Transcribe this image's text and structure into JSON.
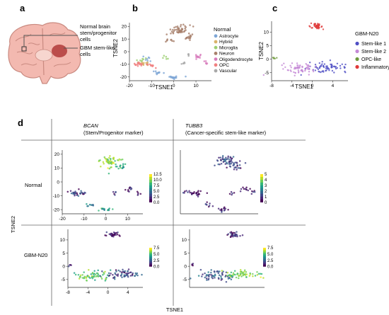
{
  "panels": {
    "a": {
      "letter": "a",
      "callouts": [
        {
          "line1": "Normal brain",
          "line2": "stem/progenitor",
          "line3": "cells"
        },
        {
          "line1": "GBM stem-like",
          "line2": "cells"
        }
      ]
    },
    "b": {
      "letter": "b",
      "xlabel": "TSNE1",
      "ylabel": "TSNE2",
      "legend_title": "Normal",
      "xticks": [
        "-20",
        "-10",
        "0",
        "10"
      ],
      "yticks": [
        "20",
        "10",
        "0",
        "-10",
        "-20"
      ]
    },
    "c": {
      "letter": "c",
      "xlabel": "TSNE1",
      "ylabel": "TSNE2",
      "legend_title": "GBM-N20",
      "xticks": [
        "-8",
        "-4",
        "0",
        "4"
      ],
      "yticks": [
        "10",
        "5",
        "0",
        "-5"
      ]
    },
    "d": {
      "letter": "d",
      "col1_title": "BCAN",
      "col1_sub": "(Stem/Progenitor marker)",
      "col2_title": "TUBB3",
      "col2_sub": "(Cancer-specific stem-like marker)",
      "row1": "Normal",
      "row2": "GBM-N20",
      "ylabel": "TSNE2",
      "xlabel": "TSNE1",
      "xticks_normal": [
        "-20",
        "-10",
        "0",
        "10"
      ],
      "yticks_normal": [
        "20",
        "10",
        "0",
        "-10",
        "-20"
      ],
      "xticks_gbm": [
        "-8",
        "-4",
        "0",
        "4"
      ],
      "yticks_gbm": [
        "10",
        "5",
        "0",
        "-5"
      ],
      "colorbars": {
        "bcan_normal": [
          "12.5",
          "10.0",
          "7.5",
          "5.0",
          "2.5",
          "0.0"
        ],
        "tubb3_normal": [
          "5",
          "4",
          "3",
          "2",
          "1",
          "0"
        ],
        "bcan_gbm": [
          "7.5",
          "5.0",
          "2.5",
          "0.0"
        ],
        "tubb3_gbm": [
          "7.5",
          "5.0",
          "2.5",
          "0.0"
        ]
      }
    }
  },
  "chart_data": [
    {
      "type": "scatter",
      "panel": "b",
      "xlabel": "TSNE1",
      "ylabel": "TSNE2",
      "xlim": [
        -20,
        17
      ],
      "ylim": [
        -23,
        23
      ],
      "legend_title": "Normal",
      "legend_position": "right",
      "series": [
        {
          "name": "Astrocyte",
          "color": "#7ea6d6",
          "clusters": [
            {
              "x": 0,
              "y": -20,
              "rx": 2.5,
              "ry": 1.5,
              "n": 18
            },
            {
              "x": -7,
              "y": -17,
              "rx": 2,
              "ry": 1.5,
              "n": 10
            },
            {
              "x": -12,
              "y": -7,
              "rx": 1.5,
              "ry": 2,
              "n": 8
            }
          ]
        },
        {
          "name": "Hybrid",
          "color": "#d9b36a",
          "clusters": [
            {
              "x": -13,
              "y": -9,
              "rx": 3,
              "ry": 2,
              "n": 14
            }
          ]
        },
        {
          "name": "Microglia",
          "color": "#9ccf73",
          "clusters": [
            {
              "x": -15,
              "y": -7,
              "rx": 2.5,
              "ry": 1.5,
              "n": 8
            },
            {
              "x": -4,
              "y": -5,
              "rx": 1.5,
              "ry": 1,
              "n": 5
            }
          ]
        },
        {
          "name": "Neuron",
          "color": "#a8806b",
          "clusters": [
            {
              "x": 2,
              "y": 17,
              "rx": 5,
              "ry": 4,
              "n": 50
            },
            {
              "x": 7,
              "y": 11,
              "rx": 2.5,
              "ry": 2,
              "n": 14
            },
            {
              "x": -2,
              "y": 9,
              "rx": 2,
              "ry": 1.5,
              "n": 8
            }
          ]
        },
        {
          "name": "Oligodendrocyte",
          "color": "#d77bbb",
          "clusters": [
            {
              "x": 11,
              "y": -4,
              "rx": 2,
              "ry": 2,
              "n": 12
            },
            {
              "x": 15,
              "y": -8,
              "rx": 1,
              "ry": 2,
              "n": 6
            }
          ]
        },
        {
          "name": "OPC",
          "color": "#f08080",
          "clusters": [
            {
              "x": -16,
              "y": -10,
              "rx": 2,
              "ry": 1.5,
              "n": 16
            },
            {
              "x": -10,
              "y": -11,
              "rx": 2,
              "ry": 1.5,
              "n": 10
            }
          ]
        },
        {
          "name": "Vascular",
          "color": "#a9a9a9",
          "clusters": [
            {
              "x": 4,
              "y": -9,
              "rx": 1,
              "ry": 1.5,
              "n": 5
            },
            {
              "x": 7,
              "y": -2,
              "rx": 0.8,
              "ry": 1,
              "n": 4
            }
          ]
        }
      ]
    },
    {
      "type": "scatter",
      "panel": "c",
      "xlabel": "TSNE1",
      "ylabel": "TSNE2",
      "xlim": [
        -8,
        7
      ],
      "ylim": [
        -8,
        14
      ],
      "legend_title": "GBM-N20",
      "legend_position": "right",
      "series": [
        {
          "name": "Stem-like 1",
          "color": "#4f4fc4",
          "clusters": [
            {
              "x": 3,
              "y": -3,
              "rx": 3.5,
              "ry": 1.5,
              "n": 70
            }
          ]
        },
        {
          "name": "Stem-like 2",
          "color": "#c488d6",
          "clusters": [
            {
              "x": -2.5,
              "y": -3.5,
              "rx": 3,
              "ry": 1.8,
              "n": 65
            }
          ]
        },
        {
          "name": "OPC-like",
          "color": "#6e9a3c",
          "clusters": [
            {
              "x": -7.5,
              "y": 0.5,
              "rx": 0.3,
              "ry": 0.5,
              "n": 5
            }
          ]
        },
        {
          "name": "Inflammatory",
          "color": "#e03a3a",
          "clusters": [
            {
              "x": 1,
              "y": 12,
              "rx": 1.2,
              "ry": 1,
              "n": 40
            }
          ]
        }
      ]
    },
    {
      "type": "scatter",
      "panel": "d-bcan-normal",
      "xlim": [
        -20,
        17
      ],
      "ylim": [
        -23,
        23
      ],
      "color_range": [
        0,
        12.5
      ],
      "clusters": [
        {
          "x": 2,
          "y": 15,
          "rx": 5,
          "ry": 4,
          "n": 55,
          "value": 10
        },
        {
          "x": 7,
          "y": 11,
          "rx": 2.5,
          "ry": 2,
          "n": 14,
          "value": 8
        },
        {
          "x": -13,
          "y": -8,
          "rx": 4,
          "ry": 2,
          "n": 30,
          "value": 2
        },
        {
          "x": -7,
          "y": -17,
          "rx": 2,
          "ry": 1.5,
          "n": 8,
          "value": 6
        },
        {
          "x": 0,
          "y": -20,
          "rx": 2.5,
          "ry": 1.5,
          "n": 14,
          "value": 8
        },
        {
          "x": 4,
          "y": -8,
          "rx": 1,
          "ry": 1.5,
          "n": 5,
          "value": 1
        },
        {
          "x": 11,
          "y": -5,
          "rx": 2,
          "ry": 2,
          "n": 10,
          "value": 0.5
        },
        {
          "x": 15,
          "y": -8,
          "rx": 1,
          "ry": 2,
          "n": 5,
          "value": 0.5
        }
      ]
    },
    {
      "type": "scatter",
      "panel": "d-tubb3-normal",
      "xlim": [
        -20,
        17
      ],
      "ylim": [
        -23,
        23
      ],
      "color_range": [
        0,
        5
      ],
      "clusters": [
        {
          "x": 2,
          "y": 15,
          "rx": 5,
          "ry": 4,
          "n": 55,
          "value": 1
        },
        {
          "x": 7,
          "y": 11,
          "rx": 2.5,
          "ry": 2,
          "n": 14,
          "value": 1
        },
        {
          "x": -13,
          "y": -8,
          "rx": 4,
          "ry": 2,
          "n": 30,
          "value": 0.3
        },
        {
          "x": -7,
          "y": -17,
          "rx": 2,
          "ry": 1.5,
          "n": 8,
          "value": 0.3
        },
        {
          "x": 0,
          "y": -20,
          "rx": 2.5,
          "ry": 1.5,
          "n": 14,
          "value": 0.5
        },
        {
          "x": 4,
          "y": -8,
          "rx": 1,
          "ry": 1.5,
          "n": 5,
          "value": 0.3
        },
        {
          "x": 11,
          "y": -5,
          "rx": 2,
          "ry": 2,
          "n": 10,
          "value": 0.3
        },
        {
          "x": 15,
          "y": -8,
          "rx": 1,
          "ry": 2,
          "n": 5,
          "value": 0.3
        }
      ]
    },
    {
      "type": "scatter",
      "panel": "d-bcan-gbm",
      "xlim": [
        -8,
        7
      ],
      "ylim": [
        -8,
        14
      ],
      "color_range": [
        0,
        7.5
      ],
      "clusters": [
        {
          "x": 1,
          "y": 12,
          "rx": 1.2,
          "ry": 1,
          "n": 30,
          "value": 0.5
        },
        {
          "x": -7.5,
          "y": 0.5,
          "rx": 0.3,
          "ry": 0.5,
          "n": 4,
          "value": 0.5
        },
        {
          "x": -3,
          "y": -3.5,
          "rx": 3,
          "ry": 1.8,
          "n": 60,
          "value": 5.5
        },
        {
          "x": 3,
          "y": -3,
          "rx": 3.5,
          "ry": 1.5,
          "n": 60,
          "value": 1.5
        }
      ]
    },
    {
      "type": "scatter",
      "panel": "d-tubb3-gbm",
      "xlim": [
        -8,
        7
      ],
      "ylim": [
        -8,
        14
      ],
      "color_range": [
        0,
        7.5
      ],
      "clusters": [
        {
          "x": 1,
          "y": 12,
          "rx": 1.2,
          "ry": 1,
          "n": 30,
          "value": 0.8
        },
        {
          "x": -7.5,
          "y": 0.5,
          "rx": 0.3,
          "ry": 0.5,
          "n": 4,
          "value": 0.5
        },
        {
          "x": -3,
          "y": -3.5,
          "rx": 3,
          "ry": 1.8,
          "n": 60,
          "value": 2
        },
        {
          "x": 3,
          "y": -3,
          "rx": 3.5,
          "ry": 1.5,
          "n": 60,
          "value": 6
        }
      ]
    }
  ]
}
